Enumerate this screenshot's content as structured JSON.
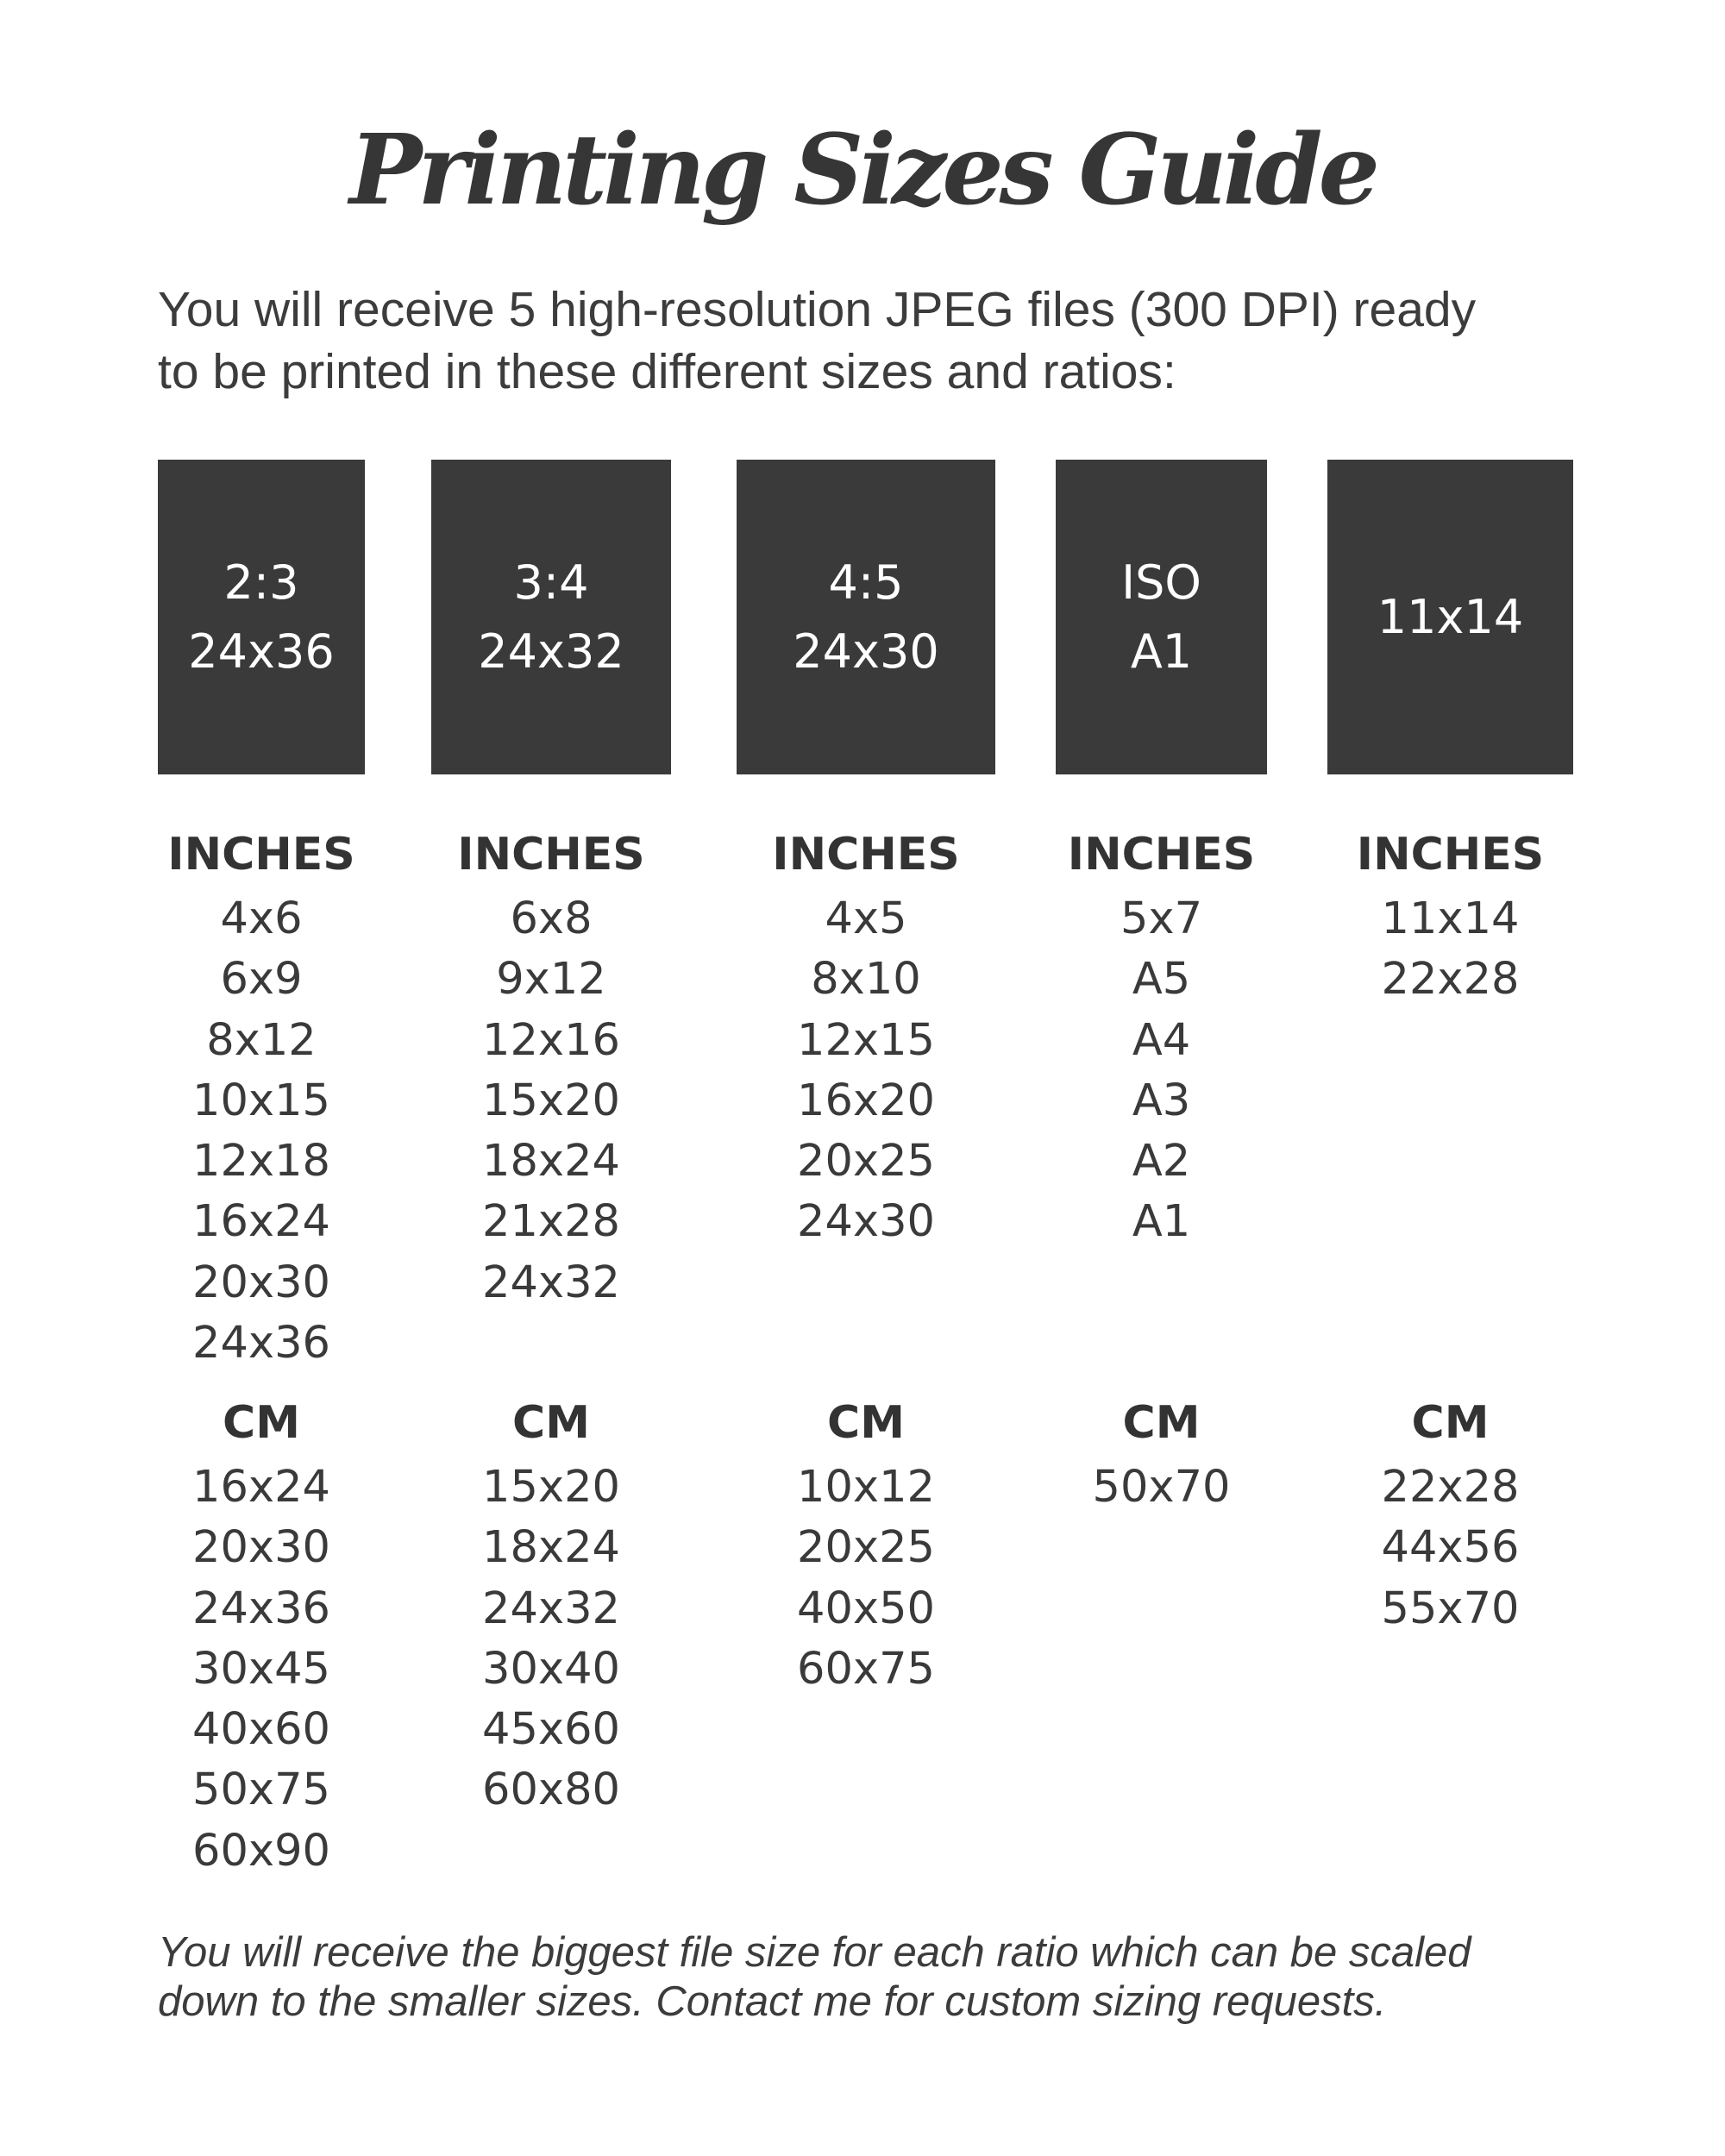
{
  "title": "Printing Sizes Guide",
  "intro": {
    "line1": "You will receive 5 high-resolution JPEG files (300 DPI) ready",
    "line2": "to be printed in these different sizes and ratios:"
  },
  "colors": {
    "box_background": "#3a3a3a",
    "box_text": "#ffffff",
    "body_text": "#3a3a3a"
  },
  "ratios": [
    {
      "box_line1": "2:3",
      "box_line2": "24x36",
      "inches_heading": "INCHES",
      "inches": [
        "4x6",
        "6x9",
        "8x12",
        "10x15",
        "12x18",
        "16x24",
        "20x30",
        "24x36"
      ],
      "cm_heading": "CM",
      "cm": [
        "16x24",
        "20x30",
        "24x36",
        "30x45",
        "40x60",
        "50x75",
        "60x90"
      ]
    },
    {
      "box_line1": "3:4",
      "box_line2": "24x32",
      "inches_heading": "INCHES",
      "inches": [
        "6x8",
        "9x12",
        "12x16",
        "15x20",
        "18x24",
        "21x28",
        "24x32"
      ],
      "cm_heading": "CM",
      "cm": [
        "15x20",
        "18x24",
        "24x32",
        "30x40",
        "45x60",
        "60x80"
      ]
    },
    {
      "box_line1": "4:5",
      "box_line2": "24x30",
      "inches_heading": "INCHES",
      "inches": [
        "4x5",
        "8x10",
        "12x15",
        "16x20",
        "20x25",
        "24x30"
      ],
      "cm_heading": "CM",
      "cm": [
        "10x12",
        "20x25",
        "40x50",
        "60x75"
      ]
    },
    {
      "box_line1": "ISO",
      "box_line2": "A1",
      "inches_heading": "INCHES",
      "inches": [
        "5x7",
        "A5",
        "A4",
        "A3",
        "A2",
        "A1"
      ],
      "cm_heading": "CM",
      "cm": [
        "50x70"
      ]
    },
    {
      "box_line1": "11x14",
      "box_line2": "",
      "inches_heading": "INCHES",
      "inches": [
        "11x14",
        "22x28"
      ],
      "cm_heading": "CM",
      "cm": [
        "22x28",
        "44x56",
        "55x70"
      ]
    }
  ],
  "footer": {
    "line1": "You will receive the biggest file size for each ratio which can be scaled",
    "line2": "down to the smaller sizes. Contact me for custom sizing requests."
  }
}
